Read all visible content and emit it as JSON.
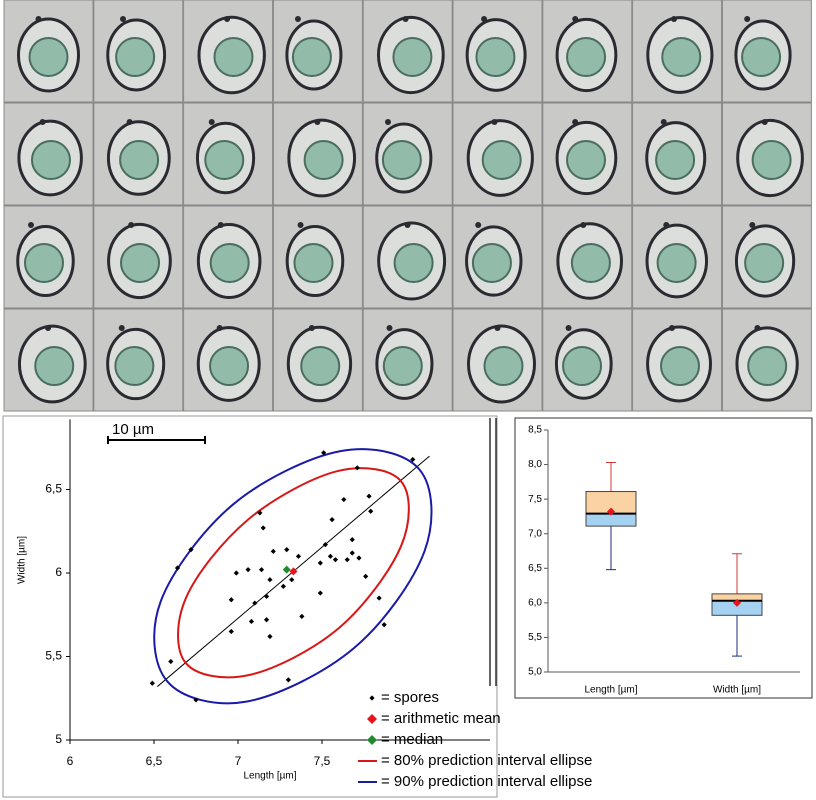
{
  "chart_data": [
    {
      "type": "scatter",
      "scale_bar": "10 µm",
      "x_label": "Length [µm]",
      "y_label": "Width [µm]",
      "xlim": [
        6,
        8.5
      ],
      "ylim": [
        5,
        6.92
      ],
      "xticks": [
        6,
        {
          "value": 6.5,
          "label": "6,5"
        },
        7,
        {
          "value": 7.5,
          "label": "7,5"
        }
      ],
      "yticks": [
        5,
        {
          "value": 5.5,
          "label": "5,5"
        },
        6,
        {
          "value": 6.5,
          "label": "6,5"
        }
      ],
      "series": [
        {
          "name": "= spores",
          "color": "#000000",
          "marker": "dot",
          "x": [
            6.49,
            6.6,
            6.64,
            6.72,
            6.75,
            6.96,
            6.96,
            6.99,
            7.06,
            7.08,
            7.1,
            7.13,
            7.14,
            7.15,
            7.17,
            7.17,
            7.19,
            7.19,
            7.21,
            7.27,
            7.29,
            7.3,
            7.32,
            7.36,
            7.38,
            7.49,
            7.49,
            7.51,
            7.52,
            7.55,
            7.56,
            7.58,
            7.63,
            7.65,
            7.68,
            7.71,
            7.68,
            7.72,
            7.76,
            7.78,
            7.79,
            7.84,
            7.87,
            8.04
          ],
          "values": [
            5.34,
            5.47,
            6.03,
            6.14,
            5.24,
            5.84,
            5.65,
            6.0,
            6.02,
            5.71,
            5.82,
            6.36,
            6.02,
            6.27,
            5.86,
            5.72,
            5.96,
            5.62,
            6.13,
            5.92,
            6.14,
            5.36,
            5.96,
            6.1,
            5.74,
            5.88,
            6.06,
            6.72,
            6.17,
            6.1,
            6.32,
            6.08,
            6.44,
            6.08,
            6.12,
            6.63,
            6.2,
            6.09,
            5.98,
            6.46,
            6.37,
            5.85,
            5.69,
            6.68
          ]
        },
        {
          "name": "= arithmetic mean",
          "color": "#e8141c",
          "marker": "diamond",
          "x": [
            7.33
          ],
          "values": [
            6.01
          ]
        },
        {
          "name": "= median",
          "color": "#1f8a2e",
          "marker": "diamond",
          "x": [
            7.29
          ],
          "values": [
            6.02
          ]
        }
      ],
      "ellipses": [
        {
          "name": "= 80% prediction interval ellipse",
          "color": "#d81818",
          "x": [
            7.97,
            7.97,
            7.6,
            7.07,
            6.69,
            6.69,
            7.06,
            7.59
          ],
          "values": [
            6.55,
            6.16,
            5.67,
            5.39,
            5.46,
            5.85,
            6.32,
            6.61
          ]
        },
        {
          "name": "= 90% prediction interval ellipse",
          "color": "#1a1aa8",
          "x": [
            8.08,
            8.11,
            7.69,
            7.05,
            6.58,
            6.54,
            6.97,
            7.61
          ],
          "values": [
            6.62,
            6.13,
            5.55,
            5.23,
            5.35,
            5.83,
            6.41,
            6.73
          ]
        }
      ],
      "regression_line": {
        "color": "#000000",
        "x": [
          6.52,
          8.14
        ],
        "values": [
          5.32,
          6.7
        ]
      }
    },
    {
      "type": "box",
      "categories": [
        "Length [µm]",
        "Width [µm]"
      ],
      "ylim": [
        5,
        8.5
      ],
      "yticks": [
        {
          "value": 5,
          "label": "5,0"
        },
        {
          "value": 5.5,
          "label": "5,5"
        },
        {
          "value": 6,
          "label": "6,0"
        },
        {
          "value": 6.5,
          "label": "6,5"
        },
        {
          "value": 7,
          "label": "7,0"
        },
        {
          "value": 7.5,
          "label": "7,5"
        },
        {
          "value": 8,
          "label": "8,0"
        },
        {
          "value": 8.5,
          "label": "8,5"
        }
      ],
      "upper_color": "#fbd2a2",
      "lower_color": "#a6d2f2",
      "whisker_high_color": "#d03838",
      "whisker_low_color": "#1c2c80",
      "mean_color": "#e8141c",
      "boxes": [
        {
          "min": 6.48,
          "q1": 7.11,
          "median": 7.29,
          "q3": 7.61,
          "max": 8.03,
          "mean": 7.32
        },
        {
          "min": 5.23,
          "q1": 5.82,
          "median": 6.03,
          "q3": 6.13,
          "max": 6.71,
          "mean": 6.0
        }
      ]
    }
  ]
}
